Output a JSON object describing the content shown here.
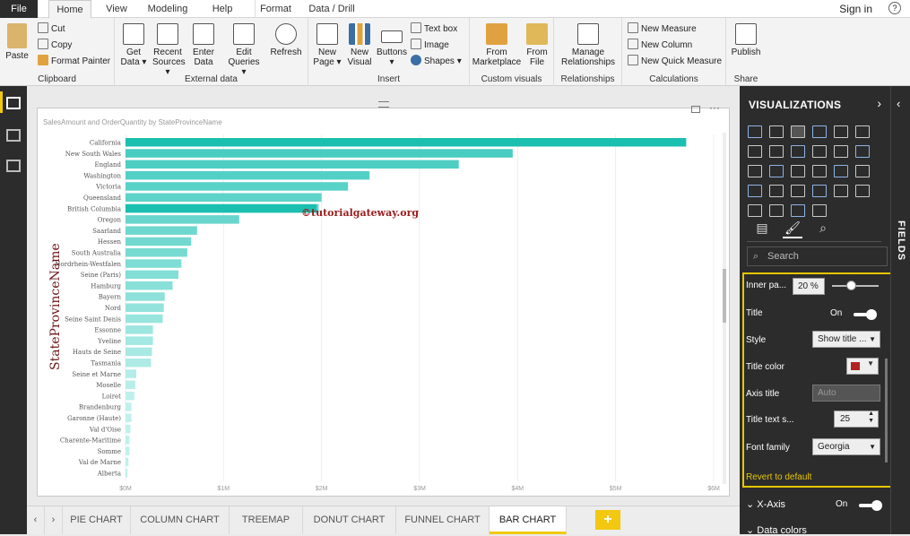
{
  "menu_tabs": [
    "File",
    "Home",
    "View",
    "Modeling",
    "Help",
    "Format",
    "Data / Drill"
  ],
  "sign_in": "Sign in",
  "ribbon": {
    "clipboard": {
      "name": "Clipboard",
      "paste": "Paste",
      "cut": "Cut",
      "copy": "Copy",
      "format_painter": "Format Painter"
    },
    "external": {
      "name": "External data",
      "get": "Get",
      "get2": "Data ▾",
      "recent": "Recent",
      "recent2": "Sources ▾",
      "enter": "Enter",
      "enter2": "Data",
      "edit": "Edit",
      "edit2": "Queries ▾",
      "refresh": "Refresh"
    },
    "insert": {
      "name": "Insert",
      "newpage": "New",
      "newpage2": "Page ▾",
      "newvisual": "New",
      "newvisual2": "Visual",
      "buttons": "Buttons",
      "buttons2": "▾",
      "textbox": "Text box",
      "image": "Image",
      "shapes": "Shapes ▾"
    },
    "custom": {
      "name": "Custom visuals",
      "from_market": "From",
      "from_market2": "Marketplace",
      "from_file": "From",
      "from_file2": "File"
    },
    "relationships": {
      "name": "Relationships",
      "manage": "Manage",
      "manage2": "Relationships"
    },
    "calculations": {
      "name": "Calculations",
      "new_measure": "New Measure",
      "new_column": "New Column",
      "new_quick": "New Quick Measure"
    },
    "share": {
      "name": "Share",
      "publish": "Publish"
    }
  },
  "visual_title": "SalesAmount and OrderQuantity by StateProvinceName",
  "watermark": "©tutorialgateway.org",
  "chart_data": {
    "type": "bar",
    "orientation": "horizontal",
    "ylabel": "StateProvinceName",
    "categories": [
      "California",
      "New South Wales",
      "England",
      "Washington",
      "Victoria",
      "Queensland",
      "British Columbia",
      "Oregon",
      "Saarland",
      "Hessen",
      "South Australia",
      "Nordrhein-Westfalen",
      "Seine (Paris)",
      "Hamburg",
      "Bayern",
      "Nord",
      "Seine Saint Denis",
      "Essonne",
      "Yveline",
      "Hauts de Seine",
      "Tasmania",
      "Seine et Marne",
      "Moselle",
      "Loiret",
      "Brandenburg",
      "Garonne (Haute)",
      "Val d'Oise",
      "Charente-Maritime",
      "Somme",
      "Val de Marne",
      "Alberta"
    ],
    "values": [
      5.72,
      3.95,
      3.4,
      2.49,
      2.27,
      2.0,
      1.97,
      1.16,
      0.73,
      0.67,
      0.63,
      0.57,
      0.54,
      0.48,
      0.4,
      0.39,
      0.38,
      0.28,
      0.28,
      0.27,
      0.26,
      0.11,
      0.1,
      0.09,
      0.06,
      0.06,
      0.05,
      0.04,
      0.04,
      0.03,
      0.02
    ],
    "secondary_segment": {
      "category": "British Columbia",
      "value": 1.95
    },
    "x_ticks": [
      "$0M",
      "$1M",
      "$2M",
      "$3M",
      "$4M",
      "$5M",
      "$6M"
    ],
    "xlim": [
      0,
      6
    ],
    "color_top": "#1abfb0",
    "color_fade": "#bff0ec"
  },
  "page_tabs": [
    "PIE CHART",
    "COLUMN CHART",
    "TREEMAP",
    "DONUT CHART",
    "FUNNEL CHART",
    "BAR CHART"
  ],
  "active_page": "BAR CHART",
  "add_tab": "+",
  "viz": {
    "heading": "VISUALIZATIONS",
    "fields_label": "FIELDS",
    "search_placeholder": "Search",
    "inner_padding_label": "Inner pa...",
    "inner_padding_value": "20",
    "inner_padding_unit": "%",
    "title_label": "Title",
    "title_state": "On",
    "style_label": "Style",
    "style_value": "Show title ...",
    "title_color_label": "Title color",
    "axis_title_label": "Axis title",
    "axis_title_placeholder": "Auto",
    "title_text_size_label": "Title text s...",
    "title_text_size_value": "25",
    "font_family_label": "Font family",
    "font_family_value": "Georgia",
    "revert": "Revert to default",
    "xaxis_label": "X-Axis",
    "xaxis_state": "On",
    "data_colors": "Data colors",
    "title_color_hex": "#b22222",
    "highlight": "#e6c600"
  }
}
